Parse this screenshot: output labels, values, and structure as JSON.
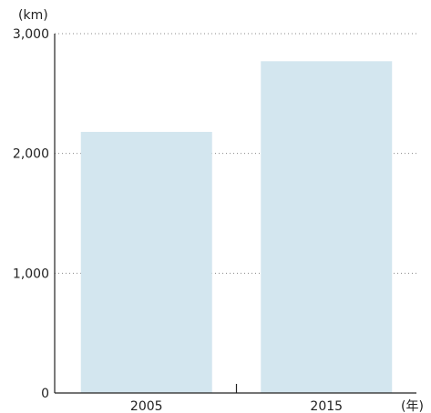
{
  "chart_data": {
    "type": "bar",
    "categories": [
      "2005",
      "2015"
    ],
    "values": [
      2180,
      2770
    ],
    "title": "",
    "ylabel": "(km)",
    "xlabel": "(年)",
    "ylim": [
      0,
      3000
    ],
    "yticks": [
      0,
      1000,
      2000,
      3000
    ],
    "ytick_labels": [
      "0",
      "1,000",
      "2,000",
      "3,000"
    ],
    "grid": true,
    "colors": {
      "bar": "#d3e6ef",
      "axis": "#222222",
      "grid": "#888888",
      "text": "#222222"
    }
  }
}
